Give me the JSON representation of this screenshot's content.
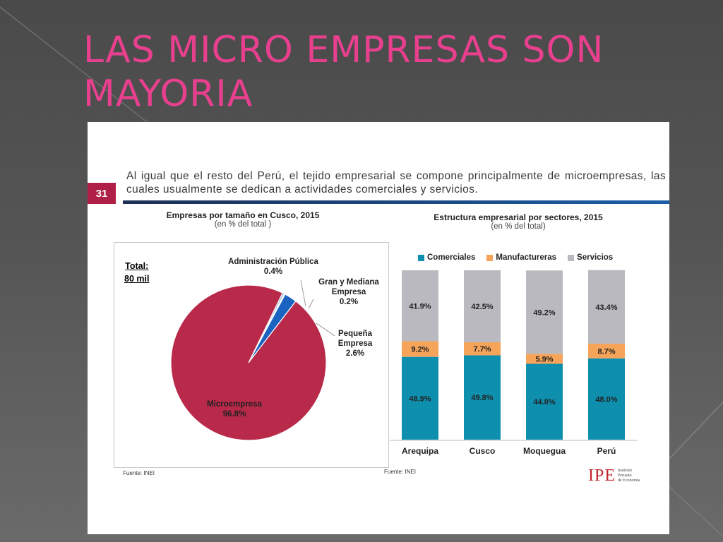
{
  "slide": {
    "title": "LAS MICRO EMPRESAS SON MAYORIA",
    "number": "31",
    "intro": "Al igual que el resto del Perú, el tejido empresarial se compone principalmente de microempresas, las cuales usualmente se dedican a actividades comerciales y servicios.",
    "logo": {
      "main": "IPE",
      "line1": "Instituto",
      "line2": "Peruano",
      "line3": "de Economía"
    },
    "colors": {
      "title": "#e8408e",
      "badge": "#b01f45"
    }
  },
  "chart_data": [
    {
      "type": "pie",
      "title": "Empresas por tamaño en Cusco, 2015",
      "subtitle": "(en % del total )",
      "total_label": "Total:",
      "total_value": "80 mil",
      "source": "Fuente: INEI",
      "slices": [
        {
          "name": "Microempresa",
          "value": 96.8,
          "label": "96.8%",
          "color": "#b8294a"
        },
        {
          "name": "Pequeña Empresa",
          "value": 2.6,
          "label": "2.6%",
          "color": "#1a63c0"
        },
        {
          "name": "Gran y Mediana Empresa",
          "value": 0.2,
          "label": "0.2%",
          "color": "#7aa6d6"
        },
        {
          "name": "Administración Pública",
          "value": 0.4,
          "label": "0.4%",
          "color": "#9bb7db"
        }
      ]
    },
    {
      "type": "bar",
      "stacked": true,
      "title": "Estructura empresarial por sectores, 2015",
      "subtitle": "(en % del total)",
      "source": "Fuente: INEI",
      "categories": [
        "Arequipa",
        "Cusco",
        "Moquegua",
        "Perú"
      ],
      "ylim": [
        0,
        100
      ],
      "series": [
        {
          "name": "Comerciales",
          "color": "#0e8fae",
          "values": [
            48.9,
            49.8,
            44.8,
            48.0
          ],
          "labels": [
            "48.9%",
            "49.8%",
            "44.8%",
            "48.0%"
          ]
        },
        {
          "name": "Manufactureras",
          "color": "#f5a45a",
          "values": [
            9.2,
            7.7,
            5.9,
            8.7
          ],
          "labels": [
            "9.2%",
            "7.7%",
            "5.9%",
            "8.7%"
          ]
        },
        {
          "name": "Servicios",
          "color": "#b9b9bf",
          "values": [
            41.9,
            42.5,
            49.2,
            43.4
          ],
          "labels": [
            "41.9%",
            "42.5%",
            "49.2%",
            "43.4%"
          ]
        }
      ],
      "legend_position": "top"
    }
  ]
}
